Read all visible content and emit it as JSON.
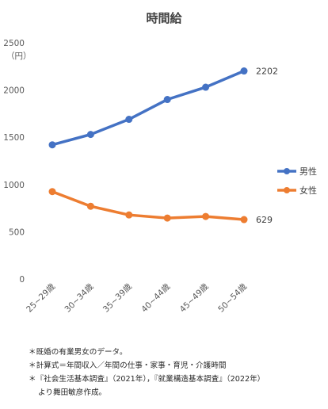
{
  "chart_data": {
    "type": "line",
    "title": "時間給",
    "unit_label": "（円）",
    "categories": [
      "25~29歳",
      "30~34歳",
      "35~39歳",
      "40~44歳",
      "45~49歳",
      "50~54歳"
    ],
    "series": [
      {
        "name": "男性",
        "color": "#4472C4",
        "values": [
          1420,
          1530,
          1690,
          1900,
          2030,
          2202
        ]
      },
      {
        "name": "女性",
        "color": "#ED7D31",
        "values": [
          925,
          770,
          678,
          645,
          662,
          629
        ]
      }
    ],
    "end_labels": [
      "2202",
      "629"
    ],
    "ylim": [
      0,
      2500
    ],
    "yticks": [
      0,
      500,
      1000,
      1500,
      2000,
      2500
    ],
    "grid": false,
    "legend_position": "right"
  },
  "notes": [
    "＊既婚の有業男女のデータ。",
    "＊計算式＝年間収入／年間の仕事・家事・育児・介護時間",
    "＊『社会生活基本調査』（2021年），『就業構造基本調査』（2022年）",
    "より舞田敏彦作成。"
  ]
}
